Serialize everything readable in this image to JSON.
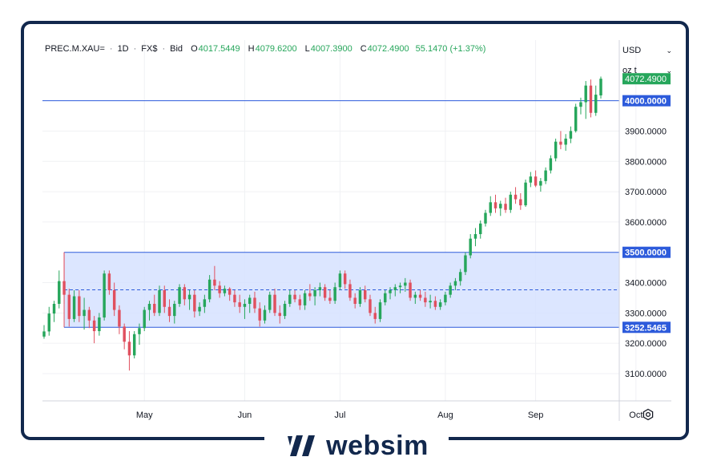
{
  "header": {
    "symbol": "PREC.M.XAU=",
    "interval": "1D",
    "source": "FX$",
    "price_type": "Bid",
    "open_label": "O",
    "open": "4017.5449",
    "high_label": "H",
    "high": "4079.6200",
    "low_label": "L",
    "low": "4007.3900",
    "close_label": "C",
    "close": "4072.4900",
    "change": "55.1470 (+1.37%)"
  },
  "controls": {
    "currency": "USD",
    "unit": "oz t"
  },
  "brand": {
    "name": "websim"
  },
  "colors": {
    "up": "#26a65b",
    "down": "#e0505f",
    "range_fill": "#d6e2ff",
    "line": "#2d5bdb",
    "frame": "#12284d"
  },
  "chart_data": {
    "type": "candlestick",
    "y_axis": {
      "range": [
        3010,
        4200
      ],
      "ticks": [
        "3100.0000",
        "3200.0000",
        "3300.0000",
        "3400.0000",
        "3600.0000",
        "3700.0000",
        "3800.0000",
        "3900.0000"
      ]
    },
    "x_axis": {
      "labels": [
        "May",
        "Jun",
        "Jul",
        "Aug",
        "Sep",
        "Oct"
      ],
      "label_bar_index": [
        20,
        40,
        59,
        80,
        98,
        118
      ]
    },
    "horizontal_lines": [
      {
        "value": 4000,
        "label": "4000.0000"
      },
      {
        "value": 3500,
        "label": "3500.0000"
      },
      {
        "value": 3252.5465,
        "label": "3252.5465"
      }
    ],
    "range_box": {
      "top": 3500,
      "bottom": 3252.5465,
      "start_bar": 4,
      "mid": 3376.27
    },
    "last_price": {
      "value": 4072.49,
      "label": "4072.4900"
    },
    "candles": [
      [
        3222,
        3260,
        3215,
        3239
      ],
      [
        3239,
        3320,
        3225,
        3298
      ],
      [
        3298,
        3340,
        3270,
        3330
      ],
      [
        3330,
        3440,
        3315,
        3405
      ],
      [
        3405,
        3500,
        3330,
        3360
      ],
      [
        3360,
        3380,
        3255,
        3280
      ],
      [
        3280,
        3375,
        3270,
        3355
      ],
      [
        3355,
        3375,
        3270,
        3290
      ],
      [
        3290,
        3350,
        3245,
        3310
      ],
      [
        3310,
        3320,
        3250,
        3275
      ],
      [
        3275,
        3290,
        3200,
        3240
      ],
      [
        3240,
        3300,
        3225,
        3285
      ],
      [
        3285,
        3440,
        3275,
        3430
      ],
      [
        3430,
        3440,
        3360,
        3375
      ],
      [
        3375,
        3400,
        3290,
        3310
      ],
      [
        3310,
        3325,
        3230,
        3255
      ],
      [
        3255,
        3265,
        3180,
        3205
      ],
      [
        3205,
        3240,
        3110,
        3160
      ],
      [
        3160,
        3240,
        3150,
        3230
      ],
      [
        3230,
        3265,
        3195,
        3250
      ],
      [
        3250,
        3320,
        3240,
        3310
      ],
      [
        3310,
        3340,
        3275,
        3330
      ],
      [
        3330,
        3360,
        3290,
        3300
      ],
      [
        3300,
        3390,
        3290,
        3375
      ],
      [
        3375,
        3390,
        3300,
        3320
      ],
      [
        3320,
        3345,
        3270,
        3290
      ],
      [
        3290,
        3340,
        3265,
        3330
      ],
      [
        3330,
        3395,
        3320,
        3385
      ],
      [
        3385,
        3395,
        3325,
        3345
      ],
      [
        3345,
        3375,
        3310,
        3360
      ],
      [
        3360,
        3375,
        3285,
        3305
      ],
      [
        3305,
        3335,
        3290,
        3320
      ],
      [
        3320,
        3360,
        3300,
        3345
      ],
      [
        3345,
        3425,
        3335,
        3410
      ],
      [
        3410,
        3455,
        3375,
        3390
      ],
      [
        3390,
        3405,
        3350,
        3365
      ],
      [
        3365,
        3390,
        3355,
        3380
      ],
      [
        3380,
        3385,
        3340,
        3360
      ],
      [
        3360,
        3375,
        3320,
        3335
      ],
      [
        3335,
        3360,
        3300,
        3320
      ],
      [
        3320,
        3345,
        3280,
        3330
      ],
      [
        3330,
        3360,
        3300,
        3350
      ],
      [
        3350,
        3370,
        3300,
        3315
      ],
      [
        3315,
        3335,
        3255,
        3275
      ],
      [
        3275,
        3325,
        3265,
        3310
      ],
      [
        3310,
        3370,
        3300,
        3360
      ],
      [
        3360,
        3380,
        3290,
        3300
      ],
      [
        3300,
        3325,
        3265,
        3290
      ],
      [
        3290,
        3340,
        3280,
        3330
      ],
      [
        3330,
        3375,
        3320,
        3360
      ],
      [
        3360,
        3375,
        3335,
        3345
      ],
      [
        3345,
        3360,
        3310,
        3325
      ],
      [
        3325,
        3375,
        3310,
        3365
      ],
      [
        3365,
        3395,
        3340,
        3355
      ],
      [
        3355,
        3385,
        3325,
        3375
      ],
      [
        3375,
        3400,
        3355,
        3385
      ],
      [
        3385,
        3395,
        3340,
        3350
      ],
      [
        3350,
        3375,
        3330,
        3340
      ],
      [
        3340,
        3400,
        3330,
        3385
      ],
      [
        3385,
        3440,
        3375,
        3430
      ],
      [
        3430,
        3440,
        3380,
        3395
      ],
      [
        3395,
        3410,
        3340,
        3350
      ],
      [
        3350,
        3365,
        3315,
        3330
      ],
      [
        3330,
        3385,
        3320,
        3375
      ],
      [
        3375,
        3390,
        3335,
        3345
      ],
      [
        3345,
        3360,
        3290,
        3300
      ],
      [
        3300,
        3320,
        3265,
        3280
      ],
      [
        3280,
        3345,
        3270,
        3335
      ],
      [
        3335,
        3375,
        3325,
        3365
      ],
      [
        3365,
        3385,
        3345,
        3375
      ],
      [
        3375,
        3395,
        3355,
        3385
      ],
      [
        3385,
        3400,
        3365,
        3390
      ],
      [
        3390,
        3415,
        3370,
        3400
      ],
      [
        3400,
        3410,
        3340,
        3350
      ],
      [
        3350,
        3370,
        3330,
        3360
      ],
      [
        3360,
        3375,
        3340,
        3350
      ],
      [
        3350,
        3370,
        3320,
        3335
      ],
      [
        3335,
        3360,
        3315,
        3340
      ],
      [
        3340,
        3355,
        3310,
        3320
      ],
      [
        3320,
        3345,
        3310,
        3335
      ],
      [
        3335,
        3370,
        3325,
        3360
      ],
      [
        3360,
        3400,
        3350,
        3390
      ],
      [
        3390,
        3415,
        3375,
        3405
      ],
      [
        3405,
        3445,
        3390,
        3435
      ],
      [
        3435,
        3500,
        3425,
        3490
      ],
      [
        3490,
        3560,
        3480,
        3545
      ],
      [
        3545,
        3580,
        3520,
        3560
      ],
      [
        3560,
        3605,
        3545,
        3595
      ],
      [
        3595,
        3640,
        3585,
        3630
      ],
      [
        3630,
        3685,
        3620,
        3665
      ],
      [
        3665,
        3690,
        3630,
        3645
      ],
      [
        3645,
        3670,
        3620,
        3660
      ],
      [
        3660,
        3680,
        3630,
        3640
      ],
      [
        3640,
        3700,
        3630,
        3690
      ],
      [
        3690,
        3715,
        3660,
        3675
      ],
      [
        3675,
        3695,
        3640,
        3655
      ],
      [
        3655,
        3740,
        3650,
        3730
      ],
      [
        3730,
        3765,
        3715,
        3750
      ],
      [
        3750,
        3770,
        3715,
        3720
      ],
      [
        3720,
        3745,
        3700,
        3735
      ],
      [
        3735,
        3780,
        3725,
        3770
      ],
      [
        3770,
        3820,
        3760,
        3810
      ],
      [
        3810,
        3875,
        3800,
        3865
      ],
      [
        3865,
        3900,
        3840,
        3855
      ],
      [
        3855,
        3890,
        3835,
        3875
      ],
      [
        3875,
        3915,
        3860,
        3900
      ],
      [
        3900,
        3990,
        3895,
        3980
      ],
      [
        3980,
        4010,
        3955,
        3995
      ],
      [
        3995,
        4065,
        3940,
        4050
      ],
      [
        4050,
        4070,
        3945,
        3960
      ],
      [
        3960,
        4050,
        3950,
        4020
      ],
      [
        4017.5449,
        4079.62,
        4007.39,
        4072.49
      ]
    ]
  }
}
